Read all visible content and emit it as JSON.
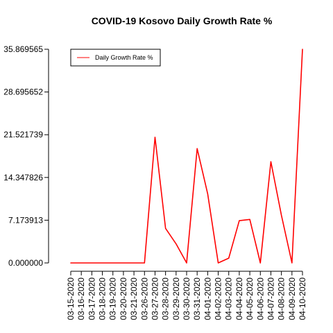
{
  "chart_data": {
    "type": "line",
    "title": "COVID-19 Kosovo Daily Growth Rate %",
    "xlabel": "",
    "ylabel": "",
    "categories": [
      "03-15-2020",
      "03-16-2020",
      "03-17-2020",
      "03-18-2020",
      "03-19-2020",
      "03-20-2020",
      "03-21-2020",
      "03-26-2020",
      "03-27-2020",
      "03-28-2020",
      "03-29-2020",
      "03-30-2020",
      "03-31-2020",
      "04-01-2020",
      "04-02-2020",
      "04-03-2020",
      "04-04-2020",
      "04-05-2020",
      "04-06-2020",
      "04-07-2020",
      "04-08-2020",
      "04-09-2020",
      "04-10-2020"
    ],
    "yticks": [
      "0.000000",
      "7.173913",
      "14.347826",
      "21.521739",
      "28.695652",
      "35.869565"
    ],
    "ylim": [
      0,
      35.869565
    ],
    "grid": false,
    "legend_position": "top-left",
    "series": [
      {
        "name": "Daily Growth Rate %",
        "color": "#ff0000",
        "values": [
          0,
          0,
          0,
          0,
          0,
          0,
          0,
          0,
          21.1,
          5.8,
          3.2,
          0,
          19.2,
          11.6,
          0,
          0.8,
          7.1,
          7.3,
          0,
          17.0,
          8.0,
          0,
          35.869565
        ]
      }
    ]
  }
}
